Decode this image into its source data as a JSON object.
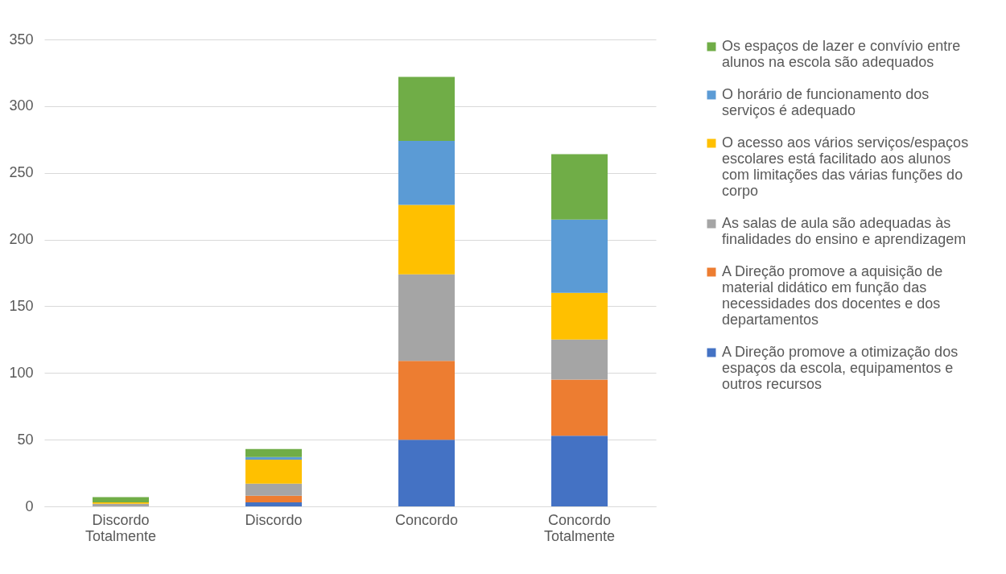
{
  "chart_data": {
    "type": "bar",
    "stacked": true,
    "categories": [
      "Discordo Totalmente",
      "Discordo",
      "Concordo",
      "Concordo Totalmente"
    ],
    "series": [
      {
        "name": "A Direção promove a otimização dos espaços da escola, equipamentos e outros recursos",
        "color": "#4472c4",
        "values": [
          0,
          3,
          50,
          53
        ]
      },
      {
        "name": "A Direção promove a aquisição de material didático em função das necessidades dos docentes e dos departamentos",
        "color": "#ed7d31",
        "values": [
          0,
          5,
          59,
          42
        ]
      },
      {
        "name": "As salas de aula são adequadas às finalidades do ensino e aprendizagem",
        "color": "#a5a5a5",
        "values": [
          2,
          9,
          65,
          30
        ]
      },
      {
        "name": "O acesso aos vários serviços/espaços escolares está facilitado aos alunos com limitações das várias funções do corpo",
        "color": "#ffc000",
        "values": [
          1,
          18,
          52,
          35
        ]
      },
      {
        "name": "O horário de funcionamento dos serviços é adequado",
        "color": "#5b9bd5",
        "values": [
          0,
          2,
          48,
          55
        ]
      },
      {
        "name": "Os espaços de lazer e convívio entre alunos na escola são adequados",
        "color": "#70ad47",
        "values": [
          4,
          6,
          48,
          49
        ]
      }
    ],
    "ylim": [
      0,
      350
    ],
    "yticks": [
      0,
      50,
      100,
      150,
      200,
      250,
      300,
      350
    ],
    "grid": "y",
    "legend": "right"
  }
}
